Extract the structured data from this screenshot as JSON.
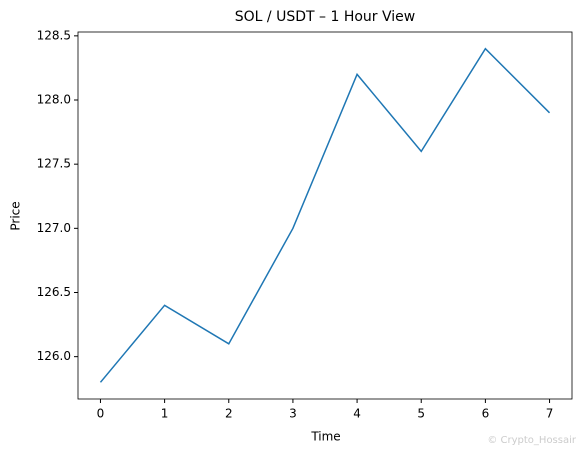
{
  "chart_data": {
    "type": "line",
    "title": "SOL / USDT – 1 Hour View",
    "x_label": "Time",
    "y_label": "Price",
    "x": [
      0,
      1,
      2,
      3,
      4,
      5,
      6,
      7
    ],
    "series": [
      {
        "color": "#1f77b4",
        "values": [
          125.8,
          126.4,
          126.1,
          127.0,
          128.2,
          127.6,
          128.4,
          127.9
        ]
      }
    ],
    "xlim": [
      -0.35,
      7.35
    ],
    "xticks": [
      0,
      1,
      2,
      3,
      4,
      5,
      6,
      7
    ],
    "ylim": [
      125.67,
      128.53
    ],
    "yticks": [
      {
        "value": 126,
        "label": "126.0"
      },
      126.5,
      {
        "value": 127,
        "label": "127.0"
      },
      127.5,
      {
        "value": 128,
        "label": "128.0"
      },
      128.5
    ],
    "grid": false,
    "watermark": "© Crypto_Hossair"
  }
}
